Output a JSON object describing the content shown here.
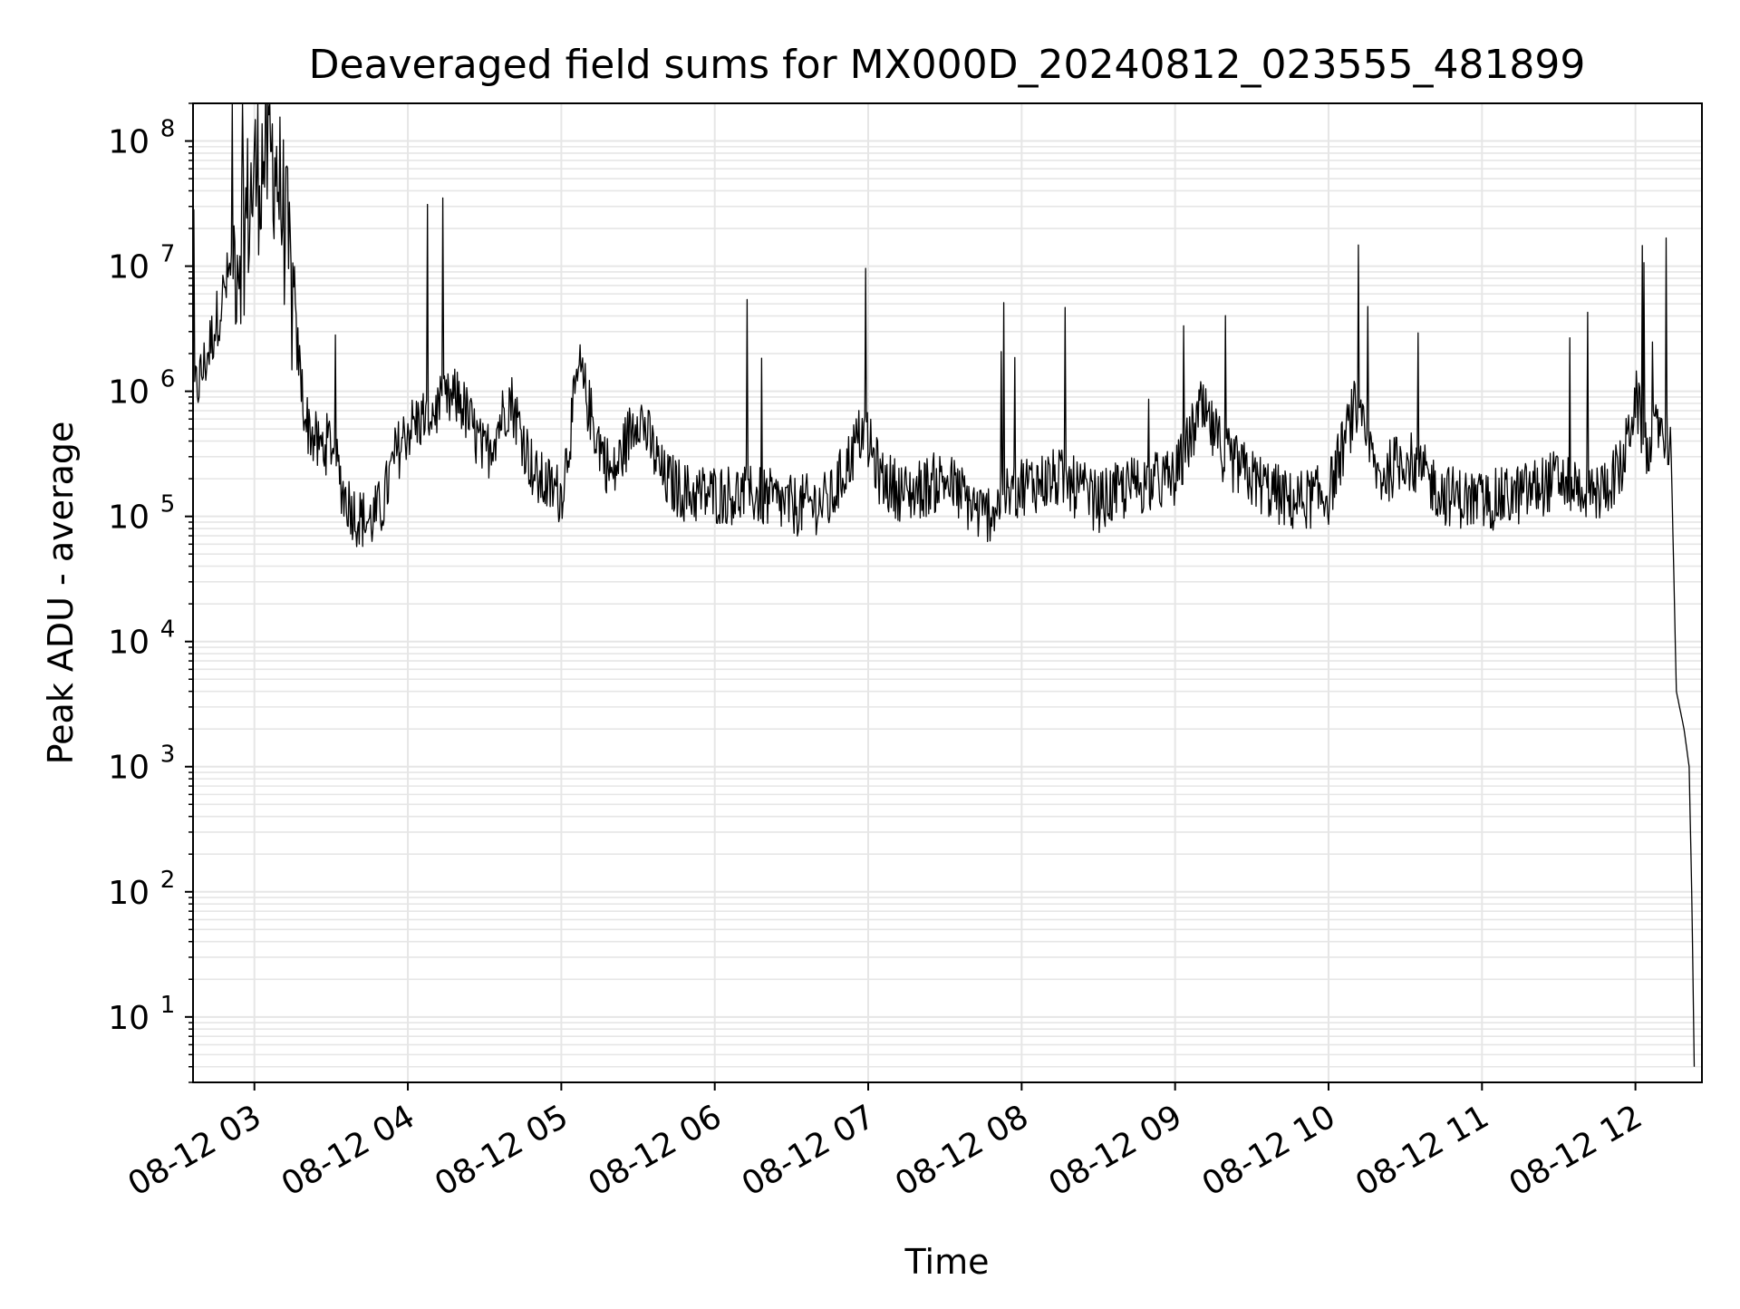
{
  "chart_data": {
    "type": "line",
    "title": "Deaveraged field sums for MX000D_20240812_023555_481899",
    "xlabel": "Time",
    "ylabel": "Peak ADU - average",
    "xscale": "time",
    "yscale": "log",
    "xlim": [
      "2024-08-12 02:36",
      "2024-08-12 12:26"
    ],
    "ylim": [
      3,
      200000000
    ],
    "grid": true,
    "grid_color": "#e6e6e6",
    "line_color": "#000000",
    "legend": false,
    "x_ticks": [
      "08-12 03",
      "08-12 04",
      "08-12 05",
      "08-12 06",
      "08-12 07",
      "08-12 08",
      "08-12 09",
      "08-12 10",
      "08-12 11",
      "08-12 12"
    ],
    "x_tick_times": [
      "2024-08-12 03:00",
      "2024-08-12 04:00",
      "2024-08-12 05:00",
      "2024-08-12 06:00",
      "2024-08-12 07:00",
      "2024-08-12 08:00",
      "2024-08-12 09:00",
      "2024-08-12 10:00",
      "2024-08-12 11:00",
      "2024-08-12 12:00"
    ],
    "y_ticks": [
      {
        "base": "10",
        "exp": "1",
        "value": 10
      },
      {
        "base": "10",
        "exp": "2",
        "value": 100
      },
      {
        "base": "10",
        "exp": "3",
        "value": 1000
      },
      {
        "base": "10",
        "exp": "4",
        "value": 10000
      },
      {
        "base": "10",
        "exp": "5",
        "value": 100000
      },
      {
        "base": "10",
        "exp": "6",
        "value": 1000000
      },
      {
        "base": "10",
        "exp": "7",
        "value": 10000000
      },
      {
        "base": "10",
        "exp": "8",
        "value": 100000000
      }
    ],
    "series": [
      {
        "color": "#000000",
        "x": [
          "2024-08-12 02:36",
          "2024-08-12 02:40",
          "2024-08-12 02:44",
          "2024-08-12 02:48",
          "2024-08-12 02:52",
          "2024-08-12 02:56",
          "2024-08-12 03:00",
          "2024-08-12 03:04",
          "2024-08-12 03:08",
          "2024-08-12 03:12",
          "2024-08-12 03:16",
          "2024-08-12 03:20",
          "2024-08-12 03:25",
          "2024-08-12 03:30",
          "2024-08-12 03:35",
          "2024-08-12 03:40",
          "2024-08-12 03:45",
          "2024-08-12 03:50",
          "2024-08-12 03:55",
          "2024-08-12 04:00",
          "2024-08-12 04:10",
          "2024-08-12 04:20",
          "2024-08-12 04:30",
          "2024-08-12 04:40",
          "2024-08-12 04:50",
          "2024-08-12 05:00",
          "2024-08-12 05:07",
          "2024-08-12 05:13",
          "2024-08-12 05:20",
          "2024-08-12 05:30",
          "2024-08-12 05:40",
          "2024-08-12 05:50",
          "2024-08-12 06:00",
          "2024-08-12 06:15",
          "2024-08-12 06:30",
          "2024-08-12 06:45",
          "2024-08-12 06:58",
          "2024-08-12 07:05",
          "2024-08-12 07:15",
          "2024-08-12 07:30",
          "2024-08-12 07:45",
          "2024-08-12 08:00",
          "2024-08-12 08:15",
          "2024-08-12 08:30",
          "2024-08-12 08:45",
          "2024-08-12 09:00",
          "2024-08-12 09:10",
          "2024-08-12 09:20",
          "2024-08-12 09:30",
          "2024-08-12 09:45",
          "2024-08-12 10:00",
          "2024-08-12 10:10",
          "2024-08-12 10:20",
          "2024-08-12 10:30",
          "2024-08-12 10:45",
          "2024-08-12 11:00",
          "2024-08-12 11:15",
          "2024-08-12 11:30",
          "2024-08-12 11:45",
          "2024-08-12 11:55",
          "2024-08-12 12:00",
          "2024-08-12 12:05",
          "2024-08-12 12:10",
          "2024-08-12 12:14",
          "2024-08-12 12:16",
          "2024-08-12 12:19",
          "2024-08-12 12:21",
          "2024-08-12 12:22",
          "2024-08-12 12:23"
        ],
        "y": [
          900000,
          1500000,
          3000000,
          6000000,
          12000000,
          20000000,
          50000000,
          78000000,
          75000000,
          20000000,
          3000000,
          600000,
          350000,
          400000,
          150000,
          100000,
          90000,
          120000,
          300000,
          500000,
          700000,
          900000,
          300000,
          900000,
          200000,
          150000,
          1500000,
          500000,
          200000,
          700000,
          200000,
          150000,
          150000,
          150000,
          120000,
          130000,
          500000,
          200000,
          150000,
          200000,
          100000,
          180000,
          200000,
          130000,
          180000,
          200000,
          700000,
          300000,
          200000,
          130000,
          150000,
          700000,
          200000,
          300000,
          150000,
          130000,
          150000,
          200000,
          150000,
          250000,
          900000,
          300000,
          600000,
          300000,
          4000,
          2000,
          1000,
          100,
          4
        ]
      }
    ]
  }
}
